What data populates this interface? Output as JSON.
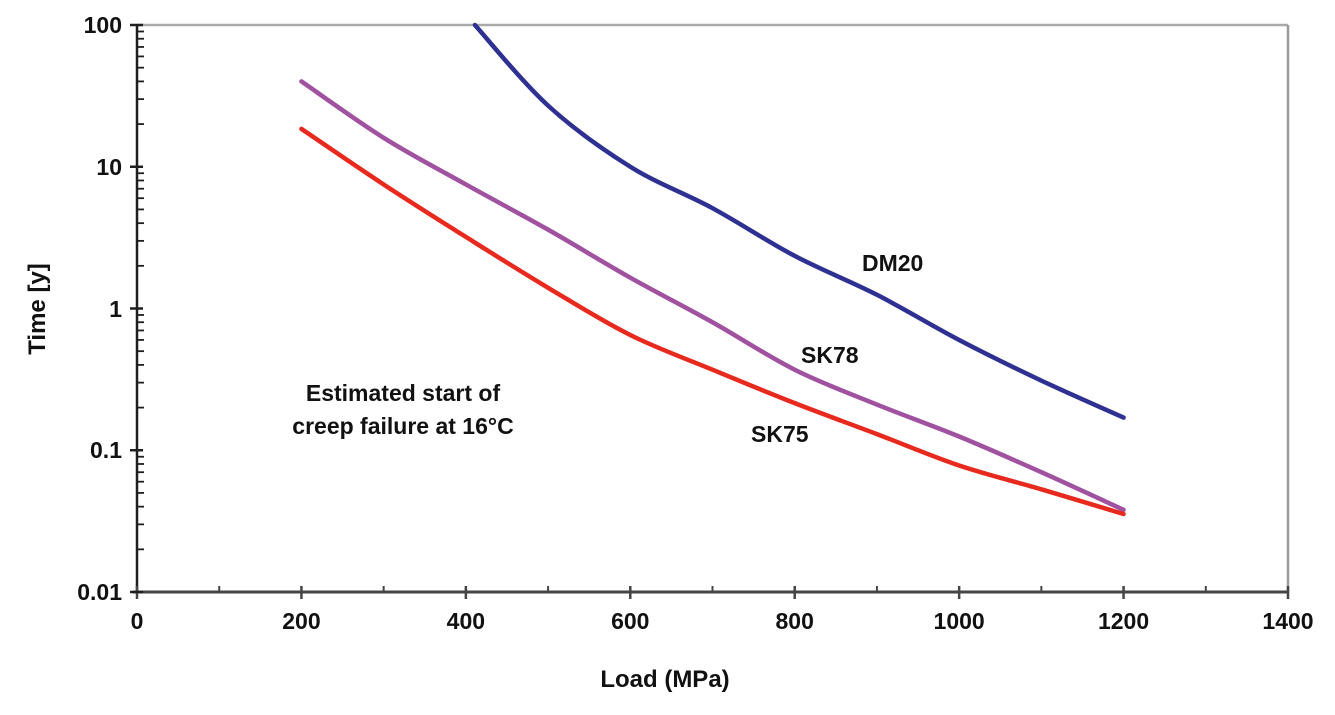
{
  "chart_data": {
    "type": "line",
    "title": "",
    "xlabel": "Load (MPa)",
    "ylabel": "Time [y]",
    "grid": false,
    "legend_position": "inline-labels",
    "x_axis": {
      "scale": "linear",
      "min": 0,
      "max": 1400,
      "major_ticks": [
        0,
        200,
        400,
        600,
        800,
        1000,
        1200,
        1400
      ],
      "major_tick_labels": [
        "0",
        "200",
        "400",
        "600",
        "800",
        "1000",
        "1200",
        "1400"
      ],
      "minor_tick_step": 100
    },
    "y_axis": {
      "scale": "log",
      "min": 0.01,
      "max": 100,
      "major_ticks": [
        100,
        10,
        1,
        0.1,
        0.01
      ],
      "major_tick_labels": [
        "100",
        "10",
        "1",
        "0.1",
        "0.01"
      ]
    },
    "annotation": {
      "line1": "Estimated start of",
      "line2": "creep failure at 16°C"
    },
    "series": [
      {
        "name": "DM20",
        "color": "#2e3192",
        "points": [
          [
            411,
            100
          ],
          [
            500,
            27
          ],
          [
            600,
            10
          ],
          [
            700,
            5.1
          ],
          [
            800,
            2.35
          ],
          [
            900,
            1.25
          ],
          [
            1000,
            0.6
          ],
          [
            1100,
            0.31
          ],
          [
            1200,
            0.17
          ]
        ]
      },
      {
        "name": "SK78",
        "color": "#a0519f",
        "points": [
          [
            200,
            40
          ],
          [
            300,
            16
          ],
          [
            400,
            7.5
          ],
          [
            500,
            3.6
          ],
          [
            600,
            1.65
          ],
          [
            700,
            0.8
          ],
          [
            800,
            0.37
          ],
          [
            900,
            0.21
          ],
          [
            1000,
            0.125
          ],
          [
            1100,
            0.07
          ],
          [
            1200,
            0.038
          ]
        ]
      },
      {
        "name": "SK75",
        "color": "#e8291d",
        "points": [
          [
            200,
            18.5
          ],
          [
            300,
            7.5
          ],
          [
            400,
            3.2
          ],
          [
            500,
            1.4
          ],
          [
            600,
            0.65
          ],
          [
            700,
            0.37
          ],
          [
            800,
            0.215
          ],
          [
            900,
            0.13
          ],
          [
            1000,
            0.078
          ],
          [
            1100,
            0.053
          ],
          [
            1200,
            0.0355
          ]
        ]
      }
    ],
    "frame_colors": {
      "left_axis": "#1f1f1f",
      "bottom_axis": "#454545",
      "top_border": "#a9a9a9",
      "right_border": "#9b9b9b"
    },
    "text_color": "#111111"
  }
}
